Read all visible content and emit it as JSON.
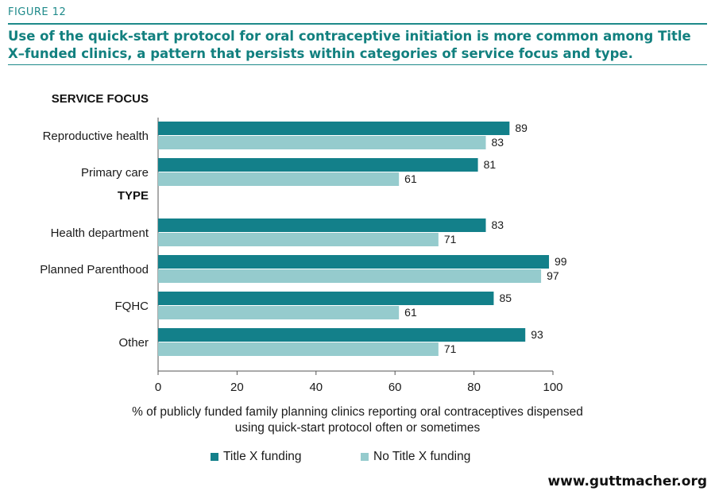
{
  "figure_label": "FIGURE 12",
  "title": "Use of the quick-start protocol for oral contraceptive initiation is more common among Title X–funded clinics, a pattern that persists within categories of service focus and type.",
  "footer": "www.guttmacher.org",
  "colors": {
    "accent": "#1e8a8a",
    "title_x": "#13808a",
    "no_title_x": "#95cbcd"
  },
  "chart_data": {
    "type": "bar",
    "orientation": "horizontal",
    "xlabel": "% of publicly funded family planning clinics reporting oral contraceptives dispensed using quick-start protocol often or sometimes",
    "xlim": [
      0,
      100
    ],
    "xticks": [
      0,
      20,
      40,
      60,
      80,
      100
    ],
    "grid": false,
    "legend_position": "bottom",
    "groups": [
      {
        "heading": "SERVICE FOCUS",
        "categories": [
          "Reproductive health",
          "Primary care"
        ]
      },
      {
        "heading": "TYPE",
        "categories": [
          "Health department",
          "Planned Parenthood",
          "FQHC",
          "Other"
        ]
      }
    ],
    "categories": [
      "Reproductive health",
      "Primary care",
      "Health department",
      "Planned Parenthood",
      "FQHC",
      "Other"
    ],
    "series": [
      {
        "name": "Title X funding",
        "color": "#13808a",
        "values": [
          89,
          81,
          83,
          99,
          85,
          93
        ]
      },
      {
        "name": "No Title X funding",
        "color": "#95cbcd",
        "values": [
          83,
          61,
          71,
          97,
          61,
          71
        ]
      }
    ]
  }
}
